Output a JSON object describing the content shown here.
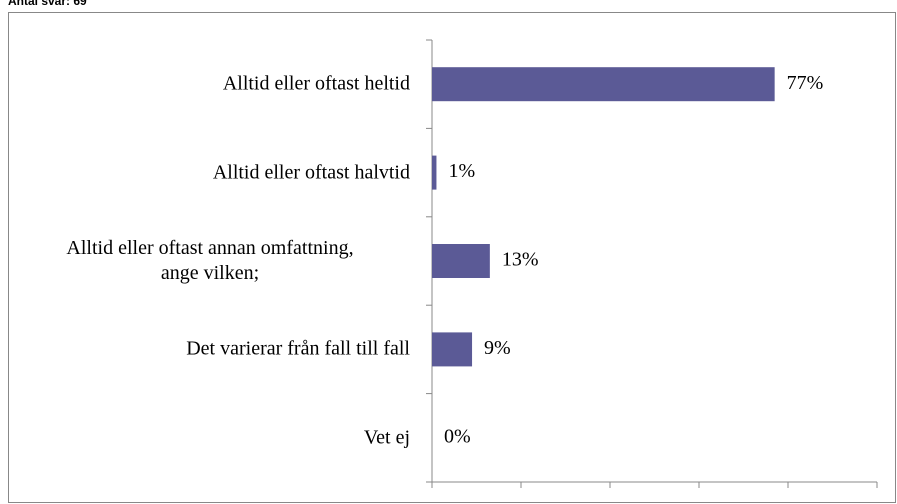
{
  "chart_data": {
    "type": "bar",
    "orientation": "horizontal",
    "title": "Antal svar: 69",
    "categories": [
      "Alltid eller oftast heltid",
      "Alltid eller oftast halvtid",
      "Alltid eller oftast annan omfattning,\nange vilken;",
      "Det varierar från fall till fall",
      "Vet ej"
    ],
    "values": [
      77,
      1,
      13,
      9,
      0
    ],
    "value_labels": [
      "77%",
      "1%",
      "13%",
      "9%",
      "0%"
    ],
    "color": "#5b5a96",
    "xlim": [
      0,
      100
    ],
    "xticks": [
      0,
      20,
      40,
      60,
      80,
      100
    ],
    "grid": false
  }
}
